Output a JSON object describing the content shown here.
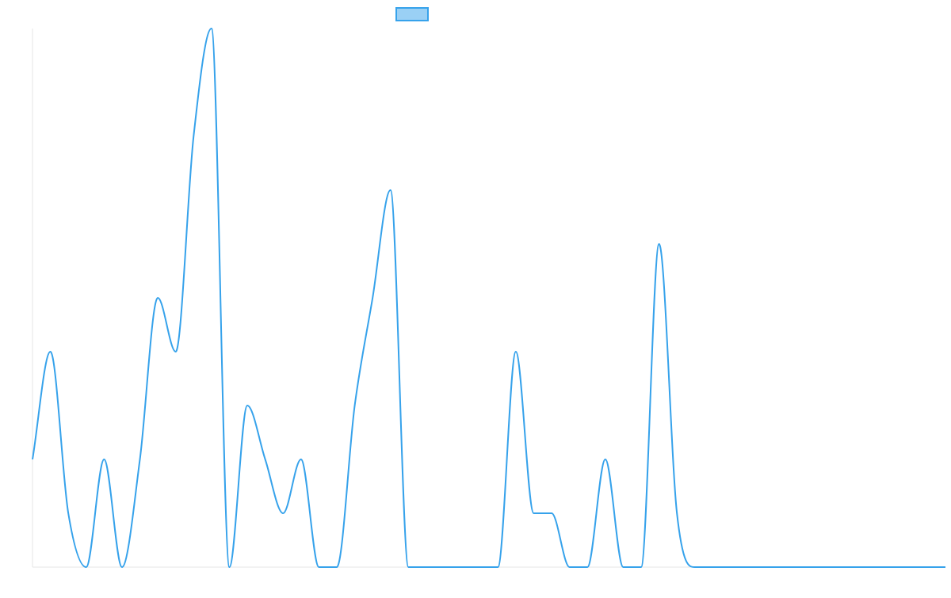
{
  "chart_data": {
    "type": "line",
    "title": "",
    "xlabel": "",
    "ylabel": "",
    "legend": {
      "placement": "top-center",
      "entries": [
        {
          "name": "",
          "color": "#36a2eb",
          "fill": "#9ad0f5"
        }
      ]
    },
    "grid": false,
    "axes_visible": false,
    "x": [
      0,
      1,
      2,
      3,
      4,
      5,
      6,
      7,
      8,
      9,
      10,
      11,
      12,
      13,
      14,
      15,
      16,
      17,
      18,
      19,
      20,
      21,
      22,
      23,
      24,
      25,
      26,
      27,
      28,
      29,
      30,
      31,
      32,
      33,
      34,
      35,
      36,
      37,
      38,
      39,
      40,
      41,
      42,
      43,
      44,
      45,
      46,
      47,
      48,
      49,
      50,
      51
    ],
    "ylim": [
      0,
      10
    ],
    "series": [
      {
        "name": "",
        "color": "#36a2eb",
        "values": [
          2,
          4,
          1,
          0,
          2,
          0,
          2,
          5,
          4,
          8,
          10,
          0,
          3,
          2,
          1,
          2,
          0,
          0,
          3,
          5,
          7,
          0,
          0,
          0,
          0,
          0,
          0,
          4,
          1,
          1,
          0,
          0,
          2,
          0,
          0,
          6,
          1,
          0,
          0,
          0,
          0,
          0,
          0,
          0,
          0,
          0,
          0,
          0,
          0,
          0,
          0,
          0
        ]
      }
    ]
  }
}
